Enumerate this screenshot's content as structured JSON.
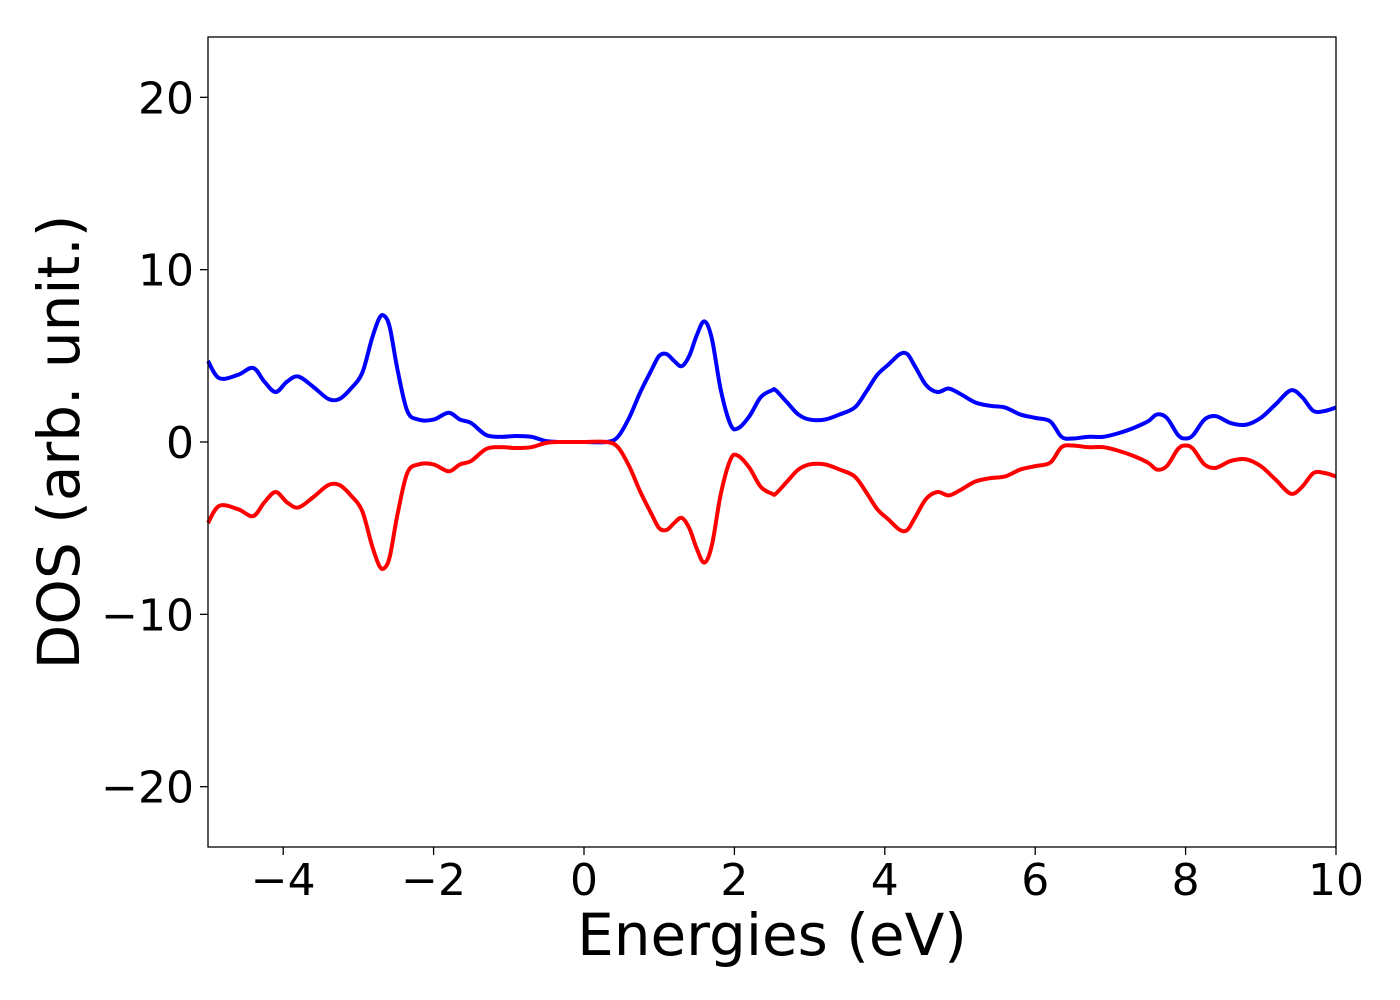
{
  "chart_data": {
    "type": "line",
    "title": "",
    "xlabel": "Energies (eV)",
    "ylabel": "DOS (arb. unit.)",
    "xlim": [
      -5,
      10
    ],
    "ylim": [
      -23.5,
      23.5
    ],
    "xticks": [
      -4,
      -2,
      0,
      2,
      4,
      6,
      8,
      10
    ],
    "yticks": [
      -20,
      -10,
      0,
      10,
      20
    ],
    "xtick_labels": [
      "−4",
      "−2",
      "0",
      "2",
      "4",
      "6",
      "8",
      "10"
    ],
    "ytick_labels": [
      "−20",
      "−10",
      "0",
      "10",
      "20"
    ],
    "grid": false,
    "legend": "none",
    "series": [
      {
        "color": "#0000ff",
        "x": [
          -5.0,
          -4.85,
          -4.6,
          -4.4,
          -4.25,
          -4.1,
          -3.95,
          -3.8,
          -3.6,
          -3.4,
          -3.25,
          -3.1,
          -2.95,
          -2.82,
          -2.72,
          -2.65,
          -2.58,
          -2.48,
          -2.35,
          -2.2,
          -2.0,
          -1.8,
          -1.65,
          -1.5,
          -1.3,
          -1.1,
          -0.9,
          -0.7,
          -0.5,
          -0.3,
          0.0,
          0.3,
          0.45,
          0.6,
          0.75,
          0.9,
          1.0,
          1.1,
          1.2,
          1.3,
          1.4,
          1.5,
          1.6,
          1.7,
          1.82,
          1.95,
          2.05,
          2.2,
          2.35,
          2.5,
          2.55,
          2.7,
          2.85,
          3.0,
          3.2,
          3.4,
          3.6,
          3.75,
          3.9,
          4.05,
          4.2,
          4.3,
          4.4,
          4.55,
          4.7,
          4.85,
          5.0,
          5.2,
          5.4,
          5.6,
          5.8,
          6.0,
          6.2,
          6.35,
          6.5,
          6.7,
          6.9,
          7.1,
          7.3,
          7.5,
          7.62,
          7.75,
          7.9,
          8.0,
          8.1,
          8.25,
          8.4,
          8.6,
          8.8,
          9.0,
          9.2,
          9.4,
          9.55,
          9.7,
          9.85,
          10.0
        ],
        "y": [
          4.7,
          3.7,
          3.9,
          4.3,
          3.5,
          2.9,
          3.5,
          3.8,
          3.2,
          2.5,
          2.5,
          3.1,
          4.0,
          6.0,
          7.2,
          7.3,
          6.6,
          4.2,
          1.8,
          1.3,
          1.3,
          1.7,
          1.3,
          1.1,
          0.4,
          0.3,
          0.35,
          0.3,
          0.05,
          0.0,
          0.0,
          0.0,
          0.3,
          1.4,
          2.9,
          4.2,
          5.0,
          5.1,
          4.7,
          4.4,
          5.0,
          6.2,
          7.0,
          6.0,
          3.0,
          1.0,
          0.8,
          1.5,
          2.6,
          3.0,
          3.0,
          2.3,
          1.6,
          1.3,
          1.3,
          1.6,
          2.0,
          2.9,
          3.9,
          4.5,
          5.1,
          5.1,
          4.4,
          3.3,
          2.9,
          3.1,
          2.8,
          2.3,
          2.1,
          2.0,
          1.6,
          1.4,
          1.2,
          0.3,
          0.2,
          0.3,
          0.3,
          0.5,
          0.8,
          1.2,
          1.6,
          1.4,
          0.4,
          0.2,
          0.4,
          1.3,
          1.5,
          1.1,
          1.0,
          1.4,
          2.2,
          3.0,
          2.6,
          1.8,
          1.8,
          2.0
        ]
      },
      {
        "color": "#ff0000",
        "x": [
          -5.0,
          -4.85,
          -4.6,
          -4.4,
          -4.25,
          -4.1,
          -3.95,
          -3.8,
          -3.6,
          -3.4,
          -3.25,
          -3.1,
          -2.95,
          -2.82,
          -2.72,
          -2.65,
          -2.58,
          -2.48,
          -2.35,
          -2.2,
          -2.0,
          -1.8,
          -1.65,
          -1.5,
          -1.3,
          -1.1,
          -0.9,
          -0.7,
          -0.5,
          -0.3,
          0.0,
          0.3,
          0.45,
          0.6,
          0.75,
          0.9,
          1.0,
          1.1,
          1.2,
          1.3,
          1.4,
          1.5,
          1.6,
          1.7,
          1.82,
          1.95,
          2.05,
          2.2,
          2.35,
          2.5,
          2.55,
          2.7,
          2.85,
          3.0,
          3.2,
          3.4,
          3.6,
          3.75,
          3.9,
          4.05,
          4.2,
          4.3,
          4.4,
          4.55,
          4.7,
          4.85,
          5.0,
          5.2,
          5.4,
          5.6,
          5.8,
          6.0,
          6.2,
          6.35,
          6.5,
          6.7,
          6.9,
          7.1,
          7.3,
          7.5,
          7.62,
          7.75,
          7.9,
          8.0,
          8.1,
          8.25,
          8.4,
          8.6,
          8.8,
          9.0,
          9.2,
          9.4,
          9.55,
          9.7,
          9.85,
          10.0
        ],
        "y": [
          -4.7,
          -3.7,
          -3.9,
          -4.3,
          -3.5,
          -2.9,
          -3.5,
          -3.8,
          -3.2,
          -2.5,
          -2.5,
          -3.1,
          -4.0,
          -6.0,
          -7.2,
          -7.3,
          -6.6,
          -4.2,
          -1.8,
          -1.3,
          -1.3,
          -1.7,
          -1.3,
          -1.1,
          -0.4,
          -0.3,
          -0.35,
          -0.3,
          -0.05,
          0.0,
          0.0,
          0.0,
          -0.3,
          -1.4,
          -2.9,
          -4.2,
          -5.0,
          -5.1,
          -4.7,
          -4.4,
          -5.0,
          -6.2,
          -7.0,
          -6.0,
          -3.0,
          -1.0,
          -0.8,
          -1.5,
          -2.6,
          -3.0,
          -3.0,
          -2.3,
          -1.6,
          -1.3,
          -1.3,
          -1.6,
          -2.0,
          -2.9,
          -3.9,
          -4.5,
          -5.1,
          -5.1,
          -4.4,
          -3.3,
          -2.9,
          -3.1,
          -2.8,
          -2.3,
          -2.1,
          -2.0,
          -1.6,
          -1.4,
          -1.2,
          -0.3,
          -0.2,
          -0.3,
          -0.3,
          -0.5,
          -0.8,
          -1.2,
          -1.6,
          -1.4,
          -0.4,
          -0.2,
          -0.4,
          -1.3,
          -1.5,
          -1.1,
          -1.0,
          -1.4,
          -2.2,
          -3.0,
          -2.6,
          -1.8,
          -1.8,
          -2.0
        ]
      }
    ]
  }
}
